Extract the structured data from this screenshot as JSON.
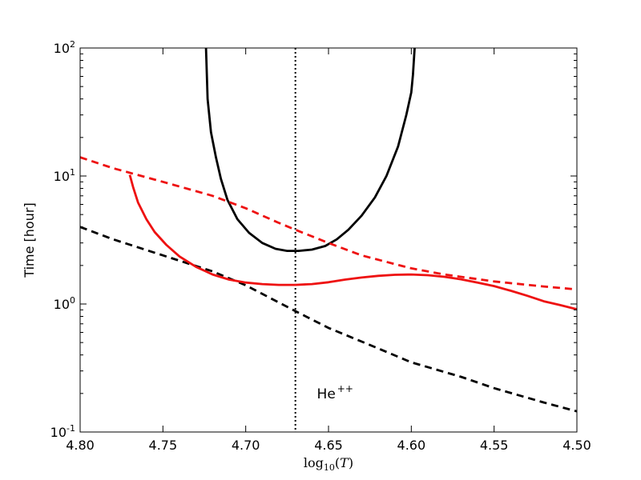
{
  "chart_data": {
    "type": "line",
    "title": "",
    "xlabel": {
      "base": "log",
      "sub": "10",
      "var": "T"
    },
    "ylabel": "Time [hour]",
    "xlim": [
      4.8,
      4.5
    ],
    "x_inverted": true,
    "ylim": [
      0.1,
      100
    ],
    "yscale": "log",
    "grid": false,
    "x_ticks": [
      4.8,
      4.75,
      4.7,
      4.65,
      4.6,
      4.55,
      4.5
    ],
    "x_tick_labels": [
      "4.80",
      "4.75",
      "4.70",
      "4.65",
      "4.60",
      "4.55",
      "4.50"
    ],
    "y_ticks": [
      {
        "value": 0.1,
        "base": "10",
        "exp": "-1"
      },
      {
        "value": 1,
        "base": "10",
        "exp": "0"
      },
      {
        "value": 10,
        "base": "10",
        "exp": "1"
      },
      {
        "value": 100,
        "base": "10",
        "exp": "2"
      }
    ],
    "vline": {
      "x": 4.67,
      "style": "dotted",
      "color": "#000000"
    },
    "annotation": {
      "text": "He",
      "sup": "++",
      "x": 4.657,
      "y": 0.2
    },
    "series": [
      {
        "id": "black-solid",
        "color": "#000000",
        "dash": "solid",
        "points": [
          [
            4.724,
            100
          ],
          [
            4.723,
            40
          ],
          [
            4.721,
            22
          ],
          [
            4.718,
            14
          ],
          [
            4.715,
            9.5
          ],
          [
            4.711,
            6.5
          ],
          [
            4.705,
            4.6
          ],
          [
            4.698,
            3.6
          ],
          [
            4.69,
            3.0
          ],
          [
            4.682,
            2.7
          ],
          [
            4.675,
            2.6
          ],
          [
            4.668,
            2.6
          ],
          [
            4.66,
            2.66
          ],
          [
            4.652,
            2.84
          ],
          [
            4.645,
            3.2
          ],
          [
            4.638,
            3.8
          ],
          [
            4.63,
            4.9
          ],
          [
            4.622,
            6.8
          ],
          [
            4.615,
            10
          ],
          [
            4.608,
            17
          ],
          [
            4.603,
            30
          ],
          [
            4.6,
            45
          ],
          [
            4.599,
            62
          ],
          [
            4.598,
            100
          ]
        ]
      },
      {
        "id": "black-dashed",
        "color": "#000000",
        "dash": "dashed",
        "points": [
          [
            4.8,
            4.0
          ],
          [
            4.78,
            3.2
          ],
          [
            4.75,
            2.4
          ],
          [
            4.72,
            1.8
          ],
          [
            4.7,
            1.4
          ],
          [
            4.67,
            0.88
          ],
          [
            4.65,
            0.65
          ],
          [
            4.62,
            0.45
          ],
          [
            4.6,
            0.35
          ],
          [
            4.57,
            0.27
          ],
          [
            4.55,
            0.22
          ],
          [
            4.52,
            0.17
          ],
          [
            4.5,
            0.145
          ]
        ]
      },
      {
        "id": "red-solid",
        "color": "#ee1111",
        "dash": "solid",
        "points": [
          [
            4.77,
            10.2
          ],
          [
            4.768,
            8.2
          ],
          [
            4.765,
            6.2
          ],
          [
            4.76,
            4.6
          ],
          [
            4.755,
            3.65
          ],
          [
            4.748,
            2.9
          ],
          [
            4.74,
            2.35
          ],
          [
            4.73,
            1.95
          ],
          [
            4.72,
            1.7
          ],
          [
            4.71,
            1.55
          ],
          [
            4.7,
            1.47
          ],
          [
            4.69,
            1.43
          ],
          [
            4.68,
            1.41
          ],
          [
            4.67,
            1.41
          ],
          [
            4.66,
            1.43
          ],
          [
            4.65,
            1.48
          ],
          [
            4.64,
            1.55
          ],
          [
            4.63,
            1.61
          ],
          [
            4.62,
            1.66
          ],
          [
            4.61,
            1.69
          ],
          [
            4.6,
            1.7
          ],
          [
            4.59,
            1.68
          ],
          [
            4.58,
            1.63
          ],
          [
            4.57,
            1.56
          ],
          [
            4.56,
            1.47
          ],
          [
            4.55,
            1.38
          ],
          [
            4.54,
            1.27
          ],
          [
            4.53,
            1.16
          ],
          [
            4.52,
            1.05
          ],
          [
            4.51,
            0.98
          ],
          [
            4.5,
            0.91
          ]
        ]
      },
      {
        "id": "red-dashed",
        "color": "#ee1111",
        "dash": "dashed",
        "points": [
          [
            4.8,
            14
          ],
          [
            4.78,
            11.5
          ],
          [
            4.75,
            9.0
          ],
          [
            4.72,
            7.0
          ],
          [
            4.7,
            5.6
          ],
          [
            4.68,
            4.3
          ],
          [
            4.67,
            3.8
          ],
          [
            4.65,
            3.0
          ],
          [
            4.63,
            2.4
          ],
          [
            4.61,
            2.05
          ],
          [
            4.6,
            1.9
          ],
          [
            4.58,
            1.7
          ],
          [
            4.55,
            1.5
          ],
          [
            4.52,
            1.37
          ],
          [
            4.5,
            1.3
          ]
        ]
      }
    ]
  }
}
